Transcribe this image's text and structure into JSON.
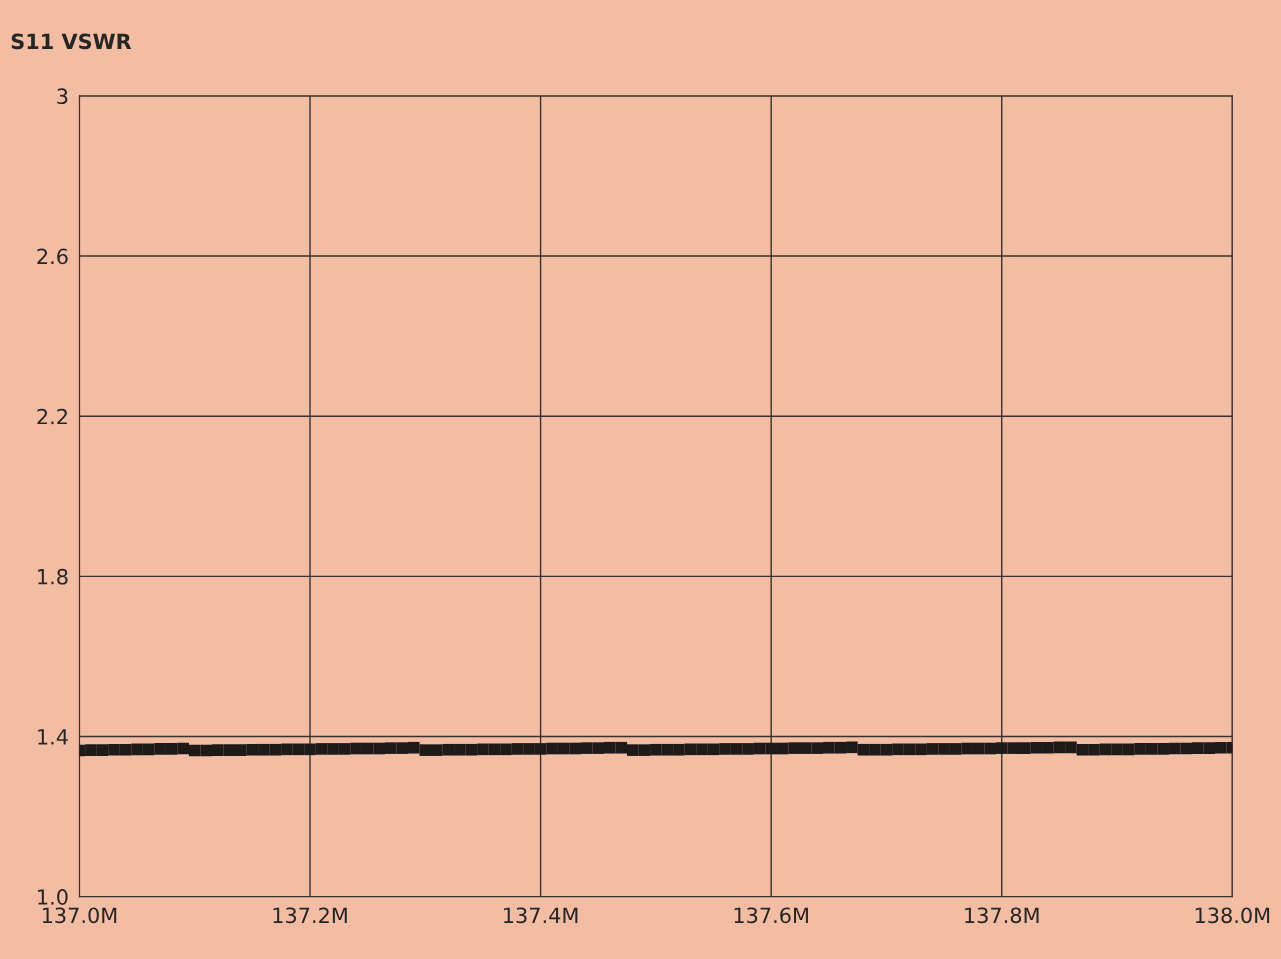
{
  "chart_data": {
    "type": "scatter",
    "title": "S11 VSWR",
    "x": [
      137.0,
      137.01,
      137.02,
      137.03,
      137.04,
      137.05,
      137.06,
      137.07,
      137.08,
      137.09,
      137.1,
      137.11,
      137.12,
      137.13,
      137.14,
      137.15,
      137.16,
      137.17,
      137.18,
      137.19,
      137.2,
      137.21,
      137.22,
      137.23,
      137.24,
      137.25,
      137.26,
      137.27,
      137.28,
      137.29,
      137.3,
      137.31,
      137.32,
      137.33,
      137.34,
      137.35,
      137.36,
      137.37,
      137.38,
      137.39,
      137.4,
      137.41,
      137.42,
      137.43,
      137.44,
      137.45,
      137.46,
      137.47,
      137.48,
      137.49,
      137.5,
      137.51,
      137.52,
      137.53,
      137.54,
      137.55,
      137.56,
      137.57,
      137.58,
      137.59,
      137.6,
      137.61,
      137.62,
      137.63,
      137.64,
      137.65,
      137.66,
      137.67,
      137.68,
      137.69,
      137.7,
      137.71,
      137.72,
      137.73,
      137.74,
      137.75,
      137.76,
      137.77,
      137.78,
      137.79,
      137.8,
      137.81,
      137.82,
      137.83,
      137.84,
      137.85,
      137.86,
      137.87,
      137.88,
      137.89,
      137.9,
      137.91,
      137.92,
      137.93,
      137.94,
      137.95,
      137.96,
      137.97,
      137.98,
      137.99,
      138.0
    ],
    "series": [
      {
        "color": "#1e1a18",
        "values": [
          1.365,
          1.366,
          1.366,
          1.367,
          1.367,
          1.368,
          1.368,
          1.369,
          1.369,
          1.37,
          1.365,
          1.365,
          1.366,
          1.366,
          1.366,
          1.367,
          1.367,
          1.367,
          1.368,
          1.368,
          1.368,
          1.369,
          1.369,
          1.369,
          1.37,
          1.37,
          1.37,
          1.371,
          1.371,
          1.372,
          1.366,
          1.366,
          1.367,
          1.367,
          1.367,
          1.368,
          1.368,
          1.368,
          1.369,
          1.369,
          1.369,
          1.37,
          1.37,
          1.37,
          1.371,
          1.371,
          1.372,
          1.372,
          1.366,
          1.366,
          1.367,
          1.367,
          1.367,
          1.368,
          1.368,
          1.368,
          1.369,
          1.369,
          1.369,
          1.37,
          1.37,
          1.37,
          1.371,
          1.371,
          1.371,
          1.372,
          1.372,
          1.373,
          1.367,
          1.367,
          1.367,
          1.368,
          1.368,
          1.368,
          1.369,
          1.369,
          1.369,
          1.37,
          1.37,
          1.37,
          1.371,
          1.371,
          1.371,
          1.372,
          1.372,
          1.373,
          1.373,
          1.367,
          1.367,
          1.368,
          1.368,
          1.368,
          1.369,
          1.369,
          1.369,
          1.37,
          1.37,
          1.371,
          1.371,
          1.372,
          1.372
        ]
      }
    ],
    "xlim": [
      137.0,
      138.0
    ],
    "xticks": [
      {
        "value": 137.0,
        "label": "137.0M"
      },
      {
        "value": 137.2,
        "label": "137.2M"
      },
      {
        "value": 137.4,
        "label": "137.4M"
      },
      {
        "value": 137.6,
        "label": "137.6M"
      },
      {
        "value": 137.8,
        "label": "137.8M"
      },
      {
        "value": 138.0,
        "label": "138.0M"
      }
    ],
    "ylim": [
      1.0,
      3.0
    ],
    "yticks": [
      {
        "value": 1.0,
        "label": "1.0"
      },
      1.4,
      1.8,
      2.2,
      2.6,
      3
    ],
    "grid": true,
    "marker": "square"
  }
}
